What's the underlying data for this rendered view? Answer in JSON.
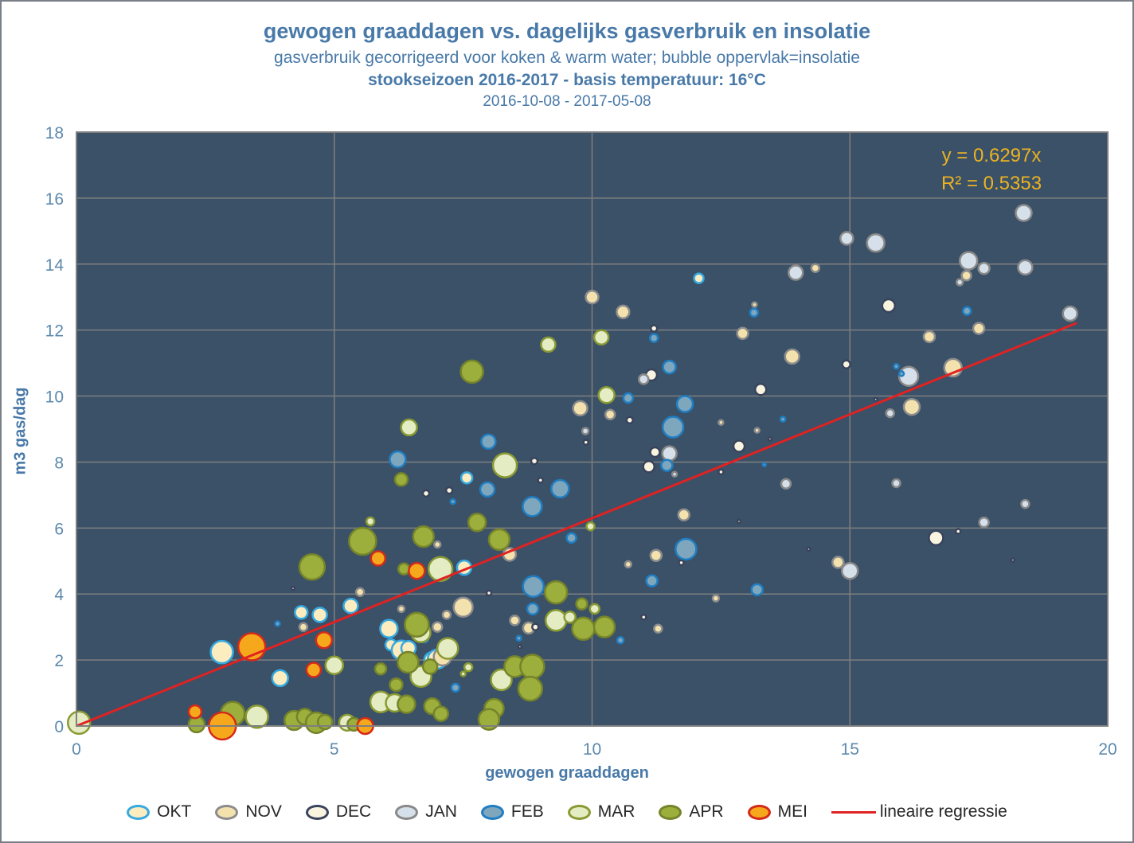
{
  "header": {
    "title": "gewogen graaddagen vs. dagelijks gasverbruik en insolatie",
    "subtitle": "gasverbruik gecorrigeerd voor koken & warm water; bubble oppervlak=insolatie",
    "season_line": "stookseizoen 2016-2017 - basis temperatuur: 16°C",
    "date_range": "2016-10-08 - 2017-05-08"
  },
  "annotation": {
    "equation": "y = 0.6297x",
    "r_squared": "R² = 0.5353"
  },
  "colors": {
    "title_blue": "#4879a8",
    "tick_blue": "#5d89ad",
    "plot_background": "#3a5168",
    "gridline": "#7f7f7f",
    "annotation_gold": "#ebb222",
    "regression_red": "#e02222",
    "frame_border": "#7a7f87"
  },
  "chart_data": {
    "type": "scatter",
    "subtype": "bubble",
    "title": "gewogen graaddagen vs. dagelijks gasverbruik en insolatie",
    "xlabel": "gewogen graaddagen",
    "ylabel": "m3 gas/dag",
    "xlim": [
      0,
      20
    ],
    "ylim": [
      0,
      18
    ],
    "x_ticks": [
      0,
      5,
      10,
      15,
      20
    ],
    "y_ticks": [
      0,
      2,
      4,
      6,
      8,
      10,
      12,
      14,
      16,
      18
    ],
    "grid": true,
    "legend_position": "bottom",
    "bubble_note": "point format [x, y, radius_px]; bubble area = insolatie",
    "regression": {
      "label": "lineaire regressie",
      "slope": 0.6297,
      "r2": 0.5353,
      "x_start": 0,
      "x_end": 19.4,
      "color": "#e02222"
    },
    "series": [
      {
        "name": "OKT",
        "fill": "#fbedc0",
        "stroke": "#36a9e1",
        "points": [
          [
            2.82,
            2.24,
            14
          ],
          [
            3.95,
            1.45,
            10
          ],
          [
            4.36,
            3.44,
            8
          ],
          [
            4.72,
            3.37,
            9
          ],
          [
            5.32,
            3.64,
            9
          ],
          [
            6.06,
            2.95,
            11
          ],
          [
            6.1,
            2.46,
            7
          ],
          [
            6.3,
            2.3,
            12
          ],
          [
            6.44,
            2.36,
            9
          ],
          [
            6.9,
            2.0,
            10
          ],
          [
            7.0,
            2.03,
            12
          ],
          [
            7.52,
            4.8,
            9
          ],
          [
            7.57,
            7.52,
            7
          ],
          [
            12.07,
            13.57,
            6
          ]
        ]
      },
      {
        "name": "NOV",
        "fill": "#f4e2ae",
        "stroke": "#8c8c8c",
        "points": [
          [
            4.4,
            3.0,
            5
          ],
          [
            5.5,
            4.06,
            5
          ],
          [
            6.3,
            3.55,
            4
          ],
          [
            7.0,
            3.0,
            6
          ],
          [
            7.18,
            3.37,
            5
          ],
          [
            7.1,
            2.1,
            11
          ],
          [
            7.0,
            5.5,
            4
          ],
          [
            7.5,
            3.6,
            12
          ],
          [
            8.5,
            3.2,
            6
          ],
          [
            8.77,
            2.97,
            7
          ],
          [
            8.4,
            5.2,
            8
          ],
          [
            9.77,
            9.63,
            9
          ],
          [
            10.35,
            9.44,
            6
          ],
          [
            10.0,
            13.0,
            8
          ],
          [
            10.6,
            12.55,
            8
          ],
          [
            11.24,
            5.17,
            7
          ],
          [
            10.7,
            4.9,
            4
          ],
          [
            11.28,
            2.95,
            5
          ],
          [
            12.4,
            3.87,
            4
          ],
          [
            12.92,
            11.9,
            7
          ],
          [
            13.15,
            12.77,
            3
          ],
          [
            13.88,
            11.2,
            9
          ],
          [
            12.5,
            9.2,
            3
          ],
          [
            13.2,
            8.96,
            3
          ],
          [
            14.33,
            13.88,
            5
          ],
          [
            17.26,
            13.65,
            6
          ],
          [
            17.5,
            12.05,
            7
          ],
          [
            16.54,
            11.8,
            7
          ],
          [
            16.2,
            9.67,
            10
          ],
          [
            17.0,
            10.86,
            11
          ],
          [
            14.77,
            4.96,
            7
          ],
          [
            11.78,
            6.4,
            7
          ]
        ]
      },
      {
        "name": "DEC",
        "fill": "#f8f4e0",
        "stroke": "#39435c",
        "points": [
          [
            4.2,
            4.17,
            2
          ],
          [
            8.0,
            4.03,
            3
          ],
          [
            8.9,
            3.0,
            4
          ],
          [
            8.6,
            2.4,
            2
          ],
          [
            6.78,
            7.05,
            4
          ],
          [
            7.23,
            7.14,
            4
          ],
          [
            8.88,
            8.03,
            4
          ],
          [
            9.0,
            7.45,
            3
          ],
          [
            9.88,
            8.6,
            3
          ],
          [
            10.05,
            6.34,
            2
          ],
          [
            10.73,
            9.27,
            4
          ],
          [
            11.2,
            12.05,
            4
          ],
          [
            11.15,
            10.64,
            7
          ],
          [
            11.22,
            8.3,
            6
          ],
          [
            11.1,
            7.86,
            7
          ],
          [
            12.85,
            8.48,
            7
          ],
          [
            13.27,
            10.2,
            7
          ],
          [
            14.93,
            10.96,
            5
          ],
          [
            15.75,
            12.74,
            8
          ],
          [
            16.67,
            5.7,
            9
          ],
          [
            17.1,
            5.9,
            3
          ],
          [
            11.0,
            3.3,
            3
          ],
          [
            13.45,
            8.7,
            2
          ],
          [
            12.5,
            7.7,
            3
          ],
          [
            12.85,
            6.2,
            2
          ],
          [
            18.16,
            5.03,
            2
          ],
          [
            15.5,
            9.9,
            2
          ],
          [
            11.73,
            4.95,
            3
          ],
          [
            14.2,
            5.36,
            2
          ]
        ]
      },
      {
        "name": "JAN",
        "fill": "#d6e0ea",
        "stroke": "#898989",
        "points": [
          [
            9.87,
            8.94,
            4
          ],
          [
            11.0,
            10.51,
            6
          ],
          [
            11.5,
            8.26,
            9
          ],
          [
            11.6,
            7.63,
            3
          ],
          [
            13.76,
            7.34,
            6
          ],
          [
            13.95,
            13.74,
            9
          ],
          [
            14.94,
            14.78,
            8
          ],
          [
            15.5,
            14.64,
            11
          ],
          [
            17.3,
            14.1,
            11
          ],
          [
            17.6,
            13.87,
            7
          ],
          [
            17.13,
            13.45,
            4
          ],
          [
            18.37,
            15.55,
            10
          ],
          [
            18.4,
            13.9,
            9
          ],
          [
            19.27,
            12.5,
            9
          ],
          [
            16.14,
            10.6,
            12
          ],
          [
            15.78,
            9.48,
            5
          ],
          [
            15.9,
            7.36,
            5
          ],
          [
            18.4,
            6.73,
            5
          ],
          [
            17.6,
            6.17,
            6
          ],
          [
            15.0,
            4.7,
            10
          ]
        ]
      },
      {
        "name": "FEB",
        "fill": "#7ea6bd",
        "stroke": "#1f7ec2",
        "points": [
          [
            3.9,
            3.1,
            3
          ],
          [
            6.23,
            8.08,
            10
          ],
          [
            6.76,
            2.63,
            4
          ],
          [
            7.3,
            6.8,
            3
          ],
          [
            7.35,
            1.16,
            5
          ],
          [
            7.99,
            8.62,
            9
          ],
          [
            7.97,
            7.17,
            9
          ],
          [
            8.58,
            2.66,
            3
          ],
          [
            8.84,
            6.65,
            12
          ],
          [
            8.86,
            4.23,
            13
          ],
          [
            8.85,
            3.55,
            7
          ],
          [
            9.38,
            7.19,
            11
          ],
          [
            9.6,
            5.7,
            6
          ],
          [
            10.55,
            2.6,
            4
          ],
          [
            10.7,
            9.94,
            6
          ],
          [
            11.16,
            4.4,
            7
          ],
          [
            11.2,
            11.76,
            5
          ],
          [
            11.5,
            10.88,
            8
          ],
          [
            11.45,
            7.9,
            7
          ],
          [
            11.57,
            9.06,
            13
          ],
          [
            11.8,
            9.76,
            10
          ],
          [
            11.82,
            5.36,
            13
          ],
          [
            13.14,
            12.53,
            5
          ],
          [
            13.2,
            4.13,
            7
          ],
          [
            13.7,
            9.3,
            3
          ],
          [
            13.34,
            7.92,
            2
          ],
          [
            15.9,
            10.9,
            3
          ],
          [
            16.0,
            10.68,
            3
          ],
          [
            17.27,
            12.58,
            5
          ]
        ]
      },
      {
        "name": "MAR",
        "fill": "#e4ecc4",
        "stroke": "#8a9a33",
        "points": [
          [
            0.05,
            0.1,
            14
          ],
          [
            3.5,
            0.28,
            14
          ],
          [
            5.0,
            1.84,
            11
          ],
          [
            5.25,
            0.1,
            10
          ],
          [
            5.7,
            6.2,
            5
          ],
          [
            5.9,
            0.73,
            13
          ],
          [
            6.17,
            0.7,
            11
          ],
          [
            6.45,
            9.05,
            10
          ],
          [
            6.68,
            2.83,
            12
          ],
          [
            6.68,
            1.5,
            13
          ],
          [
            7.2,
            2.35,
            13
          ],
          [
            7.06,
            4.76,
            15
          ],
          [
            7.5,
            1.58,
            3
          ],
          [
            7.6,
            1.78,
            5
          ],
          [
            8.24,
            1.4,
            13
          ],
          [
            8.31,
            7.9,
            15
          ],
          [
            9.15,
            11.56,
            9
          ],
          [
            9.3,
            3.2,
            13
          ],
          [
            9.57,
            3.3,
            7
          ],
          [
            10.05,
            3.55,
            6
          ],
          [
            10.28,
            10.03,
            10
          ],
          [
            9.97,
            6.05,
            5
          ],
          [
            10.18,
            11.78,
            9
          ]
        ]
      },
      {
        "name": "APR",
        "fill": "#9cae3b",
        "stroke": "#75832b",
        "points": [
          [
            2.33,
            0.05,
            10
          ],
          [
            3.03,
            0.37,
            15
          ],
          [
            4.22,
            0.17,
            12
          ],
          [
            4.43,
            0.28,
            10
          ],
          [
            4.57,
            4.82,
            16
          ],
          [
            4.65,
            0.1,
            13
          ],
          [
            4.82,
            0.12,
            9
          ],
          [
            5.38,
            0.05,
            8
          ],
          [
            5.55,
            5.6,
            17
          ],
          [
            5.9,
            1.73,
            7
          ],
          [
            6.2,
            1.25,
            8
          ],
          [
            6.3,
            7.47,
            8
          ],
          [
            6.35,
            4.76,
            7
          ],
          [
            6.4,
            0.66,
            11
          ],
          [
            6.43,
            1.93,
            13
          ],
          [
            6.6,
            3.07,
            15
          ],
          [
            6.73,
            5.74,
            13
          ],
          [
            6.86,
            1.8,
            9
          ],
          [
            6.9,
            0.6,
            10
          ],
          [
            7.07,
            0.37,
            9
          ],
          [
            7.67,
            10.74,
            14
          ],
          [
            7.77,
            6.17,
            11
          ],
          [
            8.1,
            0.53,
            12
          ],
          [
            8.0,
            0.2,
            13
          ],
          [
            8.2,
            5.65,
            13
          ],
          [
            8.5,
            1.8,
            13
          ],
          [
            8.84,
            1.8,
            15
          ],
          [
            8.8,
            1.13,
            15
          ],
          [
            9.3,
            4.05,
            14
          ],
          [
            9.8,
            3.7,
            7
          ],
          [
            9.83,
            2.95,
            14
          ],
          [
            10.24,
            3.0,
            13
          ]
        ]
      },
      {
        "name": "MEI",
        "fill": "#f6a81c",
        "stroke": "#d42a1a",
        "points": [
          [
            2.3,
            0.43,
            8
          ],
          [
            2.83,
            0.0,
            17
          ],
          [
            3.4,
            2.4,
            17
          ],
          [
            4.6,
            1.7,
            9
          ],
          [
            4.8,
            2.6,
            10
          ],
          [
            5.6,
            0.0,
            10
          ],
          [
            5.85,
            5.08,
            9
          ],
          [
            6.6,
            4.7,
            10
          ]
        ]
      }
    ]
  },
  "legend": {
    "months": [
      "OKT",
      "NOV",
      "DEC",
      "JAN",
      "FEB",
      "MAR",
      "APR",
      "MEI"
    ],
    "line_label": "lineaire regressie"
  }
}
